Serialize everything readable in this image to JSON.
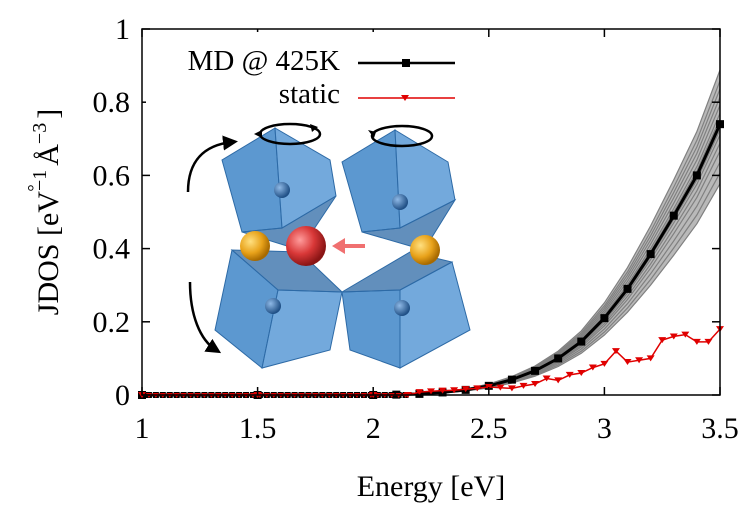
{
  "chart_data": {
    "type": "line",
    "xlabel": "Energy [eV]",
    "ylabel_parts": {
      "main": "JDOS [eV",
      "exp1": "−1",
      "unit": "Å",
      "ring": "°",
      "exp2": "−3",
      "close": "]"
    },
    "xlim": [
      1,
      3.5
    ],
    "ylim": [
      0,
      1
    ],
    "x_ticks": [
      "1",
      "1.5",
      "2",
      "2.5",
      "3",
      "3.5"
    ],
    "y_ticks": [
      "0",
      "0.2",
      "0.4",
      "0.6",
      "0.8",
      "1"
    ],
    "x_tick_values": [
      1,
      1.5,
      2,
      2.5,
      3,
      3.5
    ],
    "y_tick_values": [
      0,
      0.2,
      0.4,
      0.6,
      0.8,
      1
    ],
    "grid": false,
    "legend_placement": "top-left",
    "series": [
      {
        "name": "MD @ 425K",
        "color": "#000000",
        "marker": "square",
        "x": [
          1.0,
          1.5,
          2.0,
          2.1,
          2.2,
          2.3,
          2.4,
          2.5,
          2.6,
          2.7,
          2.8,
          2.9,
          3.0,
          3.1,
          3.2,
          3.3,
          3.4,
          3.5
        ],
        "y": [
          0.0,
          0.0,
          0.0,
          0.001,
          0.003,
          0.007,
          0.014,
          0.025,
          0.042,
          0.066,
          0.1,
          0.146,
          0.21,
          0.29,
          0.385,
          0.49,
          0.6,
          0.74
        ]
      },
      {
        "name": "static",
        "color": "#e00000",
        "marker": "triangle-down",
        "x": [
          1.0,
          1.5,
          2.0,
          2.15,
          2.2,
          2.25,
          2.3,
          2.35,
          2.4,
          2.45,
          2.5,
          2.55,
          2.6,
          2.65,
          2.7,
          2.75,
          2.8,
          2.85,
          2.9,
          2.95,
          3.0,
          3.05,
          3.1,
          3.15,
          3.2,
          3.25,
          3.3,
          3.35,
          3.4,
          3.45,
          3.5
        ],
        "y": [
          0.0,
          0.0,
          0.0,
          0.0,
          0.008,
          0.01,
          0.012,
          0.013,
          0.016,
          0.018,
          0.022,
          0.02,
          0.018,
          0.025,
          0.03,
          0.045,
          0.04,
          0.055,
          0.06,
          0.075,
          0.085,
          0.12,
          0.09,
          0.095,
          0.1,
          0.15,
          0.16,
          0.165,
          0.145,
          0.145,
          0.18
        ]
      }
    ],
    "ensemble_band": {
      "color": "#808080",
      "scales_low": [
        0.78,
        0.82,
        0.86,
        0.9,
        0.93,
        0.96,
        0.98
      ],
      "scales_high": [
        1.02,
        1.04,
        1.07,
        1.1,
        1.13,
        1.16,
        1.2
      ]
    }
  },
  "inset": {
    "description_icon": "perovskite-octahedra-illustration-icon",
    "colors": {
      "octahedron": "#3f86c8",
      "octahedron_dark": "#2d6aa6",
      "cation_gold": "#e8a21a",
      "cation_red": "#d93838",
      "arrow_red": "#f07070",
      "arrow_black": "#000000"
    }
  }
}
